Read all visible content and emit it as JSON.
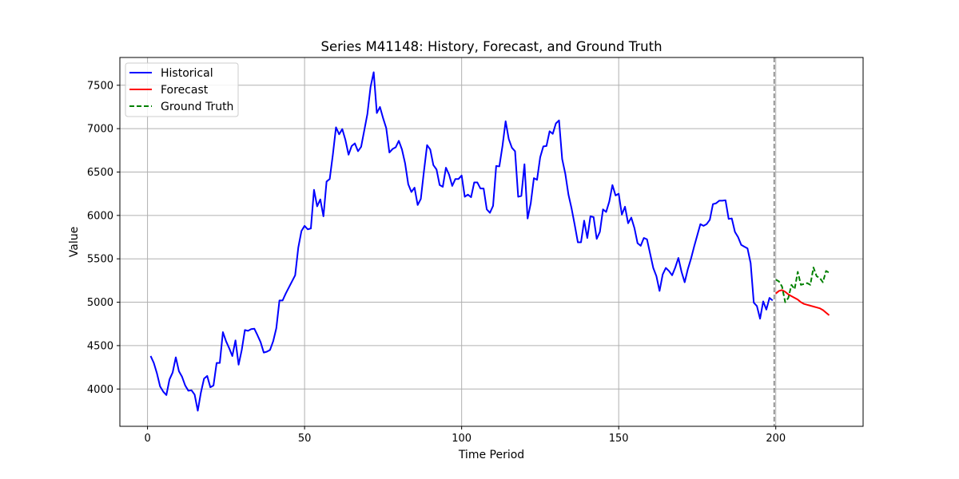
{
  "chart_data": {
    "type": "line",
    "title": "Series M41148: History, Forecast, and Ground Truth",
    "xlabel": "Time Period",
    "ylabel": "Value",
    "xlim": [
      -8.8,
      227.8
    ],
    "ylim": [
      3570,
      7820
    ],
    "x_ticks": [
      0,
      50,
      100,
      150,
      200
    ],
    "y_ticks": [
      4000,
      4500,
      5000,
      5500,
      6000,
      6500,
      7000,
      7500
    ],
    "grid": true,
    "legend_position": "upper-left",
    "forecast_start_line": {
      "x": 199.5,
      "style": "dashed",
      "color": "#808080"
    },
    "series": [
      {
        "name": "Historical",
        "color": "#0000ff",
        "style": "solid",
        "x_start": 1,
        "values": [
          4380,
          4300,
          4180,
          4030,
          3970,
          3930,
          4110,
          4190,
          4365,
          4205,
          4140,
          4040,
          3980,
          3985,
          3935,
          3750,
          3960,
          4120,
          4150,
          4020,
          4040,
          4300,
          4300,
          4655,
          4550,
          4470,
          4380,
          4560,
          4280,
          4450,
          4680,
          4670,
          4690,
          4695,
          4620,
          4540,
          4420,
          4430,
          4450,
          4550,
          4700,
          5020,
          5020,
          5100,
          5170,
          5240,
          5310,
          5630,
          5820,
          5880,
          5840,
          5850,
          6295,
          6105,
          6185,
          5990,
          6390,
          6420,
          6700,
          7015,
          6935,
          6995,
          6870,
          6700,
          6800,
          6830,
          6740,
          6790,
          6980,
          7170,
          7480,
          7650,
          7180,
          7250,
          7120,
          7005,
          6725,
          6765,
          6785,
          6860,
          6760,
          6600,
          6360,
          6270,
          6320,
          6120,
          6190,
          6510,
          6810,
          6760,
          6580,
          6530,
          6350,
          6330,
          6550,
          6470,
          6340,
          6420,
          6420,
          6460,
          6215,
          6240,
          6210,
          6380,
          6380,
          6310,
          6310,
          6070,
          6030,
          6110,
          6570,
          6565,
          6800,
          7085,
          6880,
          6780,
          6740,
          6215,
          6225,
          6590,
          5965,
          6140,
          6430,
          6410,
          6670,
          6795,
          6800,
          6970,
          6940,
          7060,
          7095,
          6650,
          6480,
          6240,
          6080,
          5890,
          5690,
          5690,
          5940,
          5740,
          5990,
          5980,
          5730,
          5810,
          6070,
          6040,
          6160,
          6350,
          6230,
          6250,
          6010,
          6100,
          5910,
          5975,
          5855,
          5680,
          5650,
          5740,
          5725,
          5560,
          5395,
          5300,
          5130,
          5320,
          5395,
          5360,
          5310,
          5400,
          5510,
          5350,
          5230,
          5380,
          5500,
          5640,
          5770,
          5900,
          5880,
          5900,
          5950,
          6130,
          6140,
          6170,
          6170,
          6175,
          5960,
          5965,
          5810,
          5750,
          5660,
          5640,
          5620,
          5450,
          4995,
          4955,
          4810,
          5010,
          4915,
          5050,
          5020
        ]
      },
      {
        "name": "Forecast",
        "color": "#ff0000",
        "style": "solid",
        "x_start": 200,
        "values": [
          5100,
          5130,
          5140,
          5120,
          5090,
          5070,
          5050,
          5030,
          5000,
          4980,
          4970,
          4960,
          4950,
          4940,
          4930,
          4910,
          4880,
          4850
        ]
      },
      {
        "name": "Ground Truth",
        "color": "#008000",
        "style": "dashed",
        "x_start": 200,
        "values": [
          5260,
          5240,
          5180,
          5000,
          5050,
          5200,
          5150,
          5350,
          5200,
          5210,
          5220,
          5200,
          5400,
          5300,
          5280,
          5230,
          5360,
          5340
        ]
      }
    ]
  }
}
